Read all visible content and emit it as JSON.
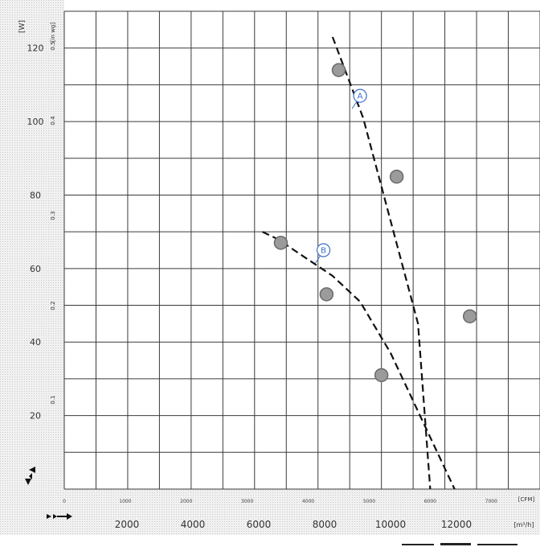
{
  "chart_data": {
    "type": "line",
    "title": "",
    "xlabel": "",
    "ylabel": "",
    "units": {
      "left_primary": "[W]",
      "left_secondary": "[in wg]",
      "bottom_primary": "[CFM]",
      "bottom_secondary": "[m³/h]"
    },
    "axes": {
      "x_cfm": {
        "range": [
          0,
          7800
        ],
        "ticks": [
          "0",
          "1000",
          "2000",
          "3000",
          "4000",
          "5000",
          "6000",
          "7000",
          "8000"
        ]
      },
      "x_m3h": {
        "ticks": [
          "2000",
          "4000",
          "6000",
          "8000",
          "10000",
          "12000"
        ]
      },
      "y_w": {
        "range": [
          0,
          130
        ],
        "ticks": [
          "20",
          "40",
          "60",
          "80",
          "100",
          "120"
        ]
      },
      "y_inwg": {
        "ticks": [
          "0.1",
          "0.2",
          "0.3",
          "0.4",
          "0.5"
        ]
      }
    },
    "grid": true,
    "series": [
      {
        "name": "A",
        "style": "dashed",
        "x": [
          4400,
          4900,
          5800,
          6000
        ],
        "y": [
          123,
          101,
          45,
          0
        ],
        "markers": [
          {
            "x": 4500,
            "y": 114
          },
          {
            "x": 5450,
            "y": 85
          },
          {
            "x": 6650,
            "y": 47
          }
        ]
      },
      {
        "name": "B",
        "style": "dashed",
        "x": [
          3250,
          3500,
          4400,
          4850,
          5350,
          6400
        ],
        "y": [
          70,
          68,
          58,
          51,
          37,
          0
        ],
        "markers": [
          {
            "x": 3550,
            "y": 67
          },
          {
            "x": 4300,
            "y": 53
          },
          {
            "x": 5200,
            "y": 31
          }
        ]
      }
    ]
  }
}
